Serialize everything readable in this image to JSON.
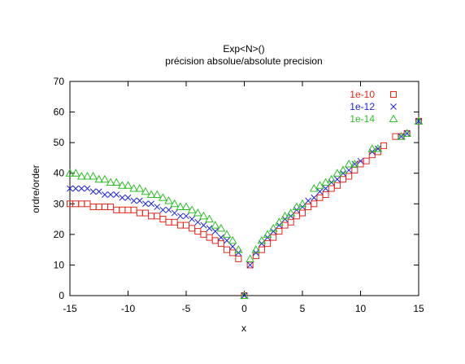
{
  "chart_data": {
    "type": "scatter",
    "title": "Exp<N>()",
    "subtitle": "précision absolue/absolute precision",
    "xlabel": "x",
    "ylabel": "ordre/order",
    "xlim": [
      -15,
      15
    ],
    "ylim": [
      0,
      70
    ],
    "x_ticks": [
      -15,
      -10,
      -5,
      0,
      5,
      10,
      15
    ],
    "y_ticks": [
      0,
      10,
      20,
      30,
      40,
      50,
      60,
      70
    ],
    "grid": false,
    "legend_position": "top-right",
    "series": [
      {
        "name": "1e-10",
        "color": "#e8251b",
        "marker": "square",
        "points": [
          [
            -15,
            30
          ],
          [
            -14.5,
            30
          ],
          [
            -14,
            30
          ],
          [
            -13.5,
            30
          ],
          [
            -13,
            29
          ],
          [
            -12.5,
            29
          ],
          [
            -12,
            29
          ],
          [
            -11.5,
            29
          ],
          [
            -11,
            28
          ],
          [
            -10.5,
            28
          ],
          [
            -10,
            28
          ],
          [
            -9.5,
            28
          ],
          [
            -9,
            27
          ],
          [
            -8.5,
            27
          ],
          [
            -8,
            26
          ],
          [
            -7.5,
            26
          ],
          [
            -7,
            25
          ],
          [
            -6.5,
            24
          ],
          [
            -6,
            24
          ],
          [
            -5.5,
            23
          ],
          [
            -5,
            23
          ],
          [
            -4.5,
            22
          ],
          [
            -4,
            21
          ],
          [
            -3.5,
            20
          ],
          [
            -3,
            19
          ],
          [
            -2.5,
            18
          ],
          [
            -2,
            17
          ],
          [
            -1.5,
            15
          ],
          [
            -1,
            14
          ],
          [
            -0.5,
            12
          ],
          [
            0,
            0
          ],
          [
            0.5,
            10
          ],
          [
            1,
            13
          ],
          [
            1.5,
            15
          ],
          [
            2,
            17
          ],
          [
            2.5,
            19
          ],
          [
            3,
            21
          ],
          [
            3.5,
            23
          ],
          [
            4,
            24
          ],
          [
            4.5,
            26
          ],
          [
            5,
            27
          ],
          [
            5.5,
            29
          ],
          [
            6,
            30
          ],
          [
            6.5,
            32
          ],
          [
            7,
            33
          ],
          [
            7.5,
            35
          ],
          [
            8,
            36
          ],
          [
            8.5,
            38
          ],
          [
            9,
            39
          ],
          [
            9.5,
            41
          ],
          [
            10,
            43
          ],
          [
            10.5,
            44
          ],
          [
            11,
            46
          ],
          [
            11.5,
            47
          ],
          [
            12,
            49
          ],
          [
            13,
            52
          ],
          [
            13.5,
            52
          ],
          [
            14,
            53
          ],
          [
            15,
            57
          ]
        ]
      },
      {
        "name": "1e-12",
        "color": "#1a23d6",
        "marker": "cross",
        "points": [
          [
            -15,
            35
          ],
          [
            -14.5,
            35
          ],
          [
            -14,
            35
          ],
          [
            -13.5,
            35
          ],
          [
            -13,
            34
          ],
          [
            -12.5,
            34
          ],
          [
            -12,
            33
          ],
          [
            -11.5,
            33
          ],
          [
            -11,
            33
          ],
          [
            -10.5,
            32
          ],
          [
            -10,
            32
          ],
          [
            -9.5,
            31
          ],
          [
            -9,
            31
          ],
          [
            -8.5,
            30
          ],
          [
            -8,
            30
          ],
          [
            -7.5,
            29
          ],
          [
            -7,
            28
          ],
          [
            -6.5,
            28
          ],
          [
            -6,
            27
          ],
          [
            -5.5,
            26
          ],
          [
            -5,
            26
          ],
          [
            -4.5,
            25
          ],
          [
            -4,
            24
          ],
          [
            -3.5,
            23
          ],
          [
            -3,
            22
          ],
          [
            -2.5,
            21
          ],
          [
            -2,
            19
          ],
          [
            -1.5,
            18
          ],
          [
            -1,
            16
          ],
          [
            -0.5,
            14
          ],
          [
            0,
            0
          ],
          [
            0.5,
            10
          ],
          [
            1,
            14
          ],
          [
            1.5,
            17
          ],
          [
            2,
            19
          ],
          [
            2.5,
            21
          ],
          [
            3,
            23
          ],
          [
            3.5,
            25
          ],
          [
            4,
            26
          ],
          [
            4.5,
            28
          ],
          [
            5,
            29
          ],
          [
            5.5,
            31
          ],
          [
            6,
            32
          ],
          [
            6.5,
            34
          ],
          [
            7,
            35
          ],
          [
            7.5,
            37
          ],
          [
            8,
            38
          ],
          [
            8.5,
            40
          ],
          [
            9,
            41
          ],
          [
            9.5,
            43
          ],
          [
            10,
            44
          ],
          [
            11,
            47
          ],
          [
            11.5,
            48
          ],
          [
            13.5,
            52
          ],
          [
            14,
            53
          ],
          [
            15,
            57
          ]
        ]
      },
      {
        "name": "1e-14",
        "color": "#2fbf29",
        "marker": "triangle",
        "points": [
          [
            -15,
            40
          ],
          [
            -14.5,
            40
          ],
          [
            -14,
            39
          ],
          [
            -13.5,
            39
          ],
          [
            -13,
            39
          ],
          [
            -12.5,
            38
          ],
          [
            -12,
            38
          ],
          [
            -11.5,
            37
          ],
          [
            -11,
            37
          ],
          [
            -10.5,
            36
          ],
          [
            -10,
            36
          ],
          [
            -9.5,
            35
          ],
          [
            -9,
            35
          ],
          [
            -8.5,
            34
          ],
          [
            -8,
            33
          ],
          [
            -7.5,
            33
          ],
          [
            -7,
            32
          ],
          [
            -6.5,
            31
          ],
          [
            -6,
            30
          ],
          [
            -5.5,
            29
          ],
          [
            -5,
            29
          ],
          [
            -4.5,
            28
          ],
          [
            -4,
            27
          ],
          [
            -3.5,
            26
          ],
          [
            -3,
            25
          ],
          [
            -2.5,
            23
          ],
          [
            -2,
            22
          ],
          [
            -1.5,
            20
          ],
          [
            -1,
            18
          ],
          [
            -0.5,
            15
          ],
          [
            0,
            0
          ],
          [
            0.5,
            12
          ],
          [
            1,
            15
          ],
          [
            1.5,
            18
          ],
          [
            2,
            20
          ],
          [
            2.5,
            22
          ],
          [
            3,
            24
          ],
          [
            3.5,
            26
          ],
          [
            4,
            27
          ],
          [
            4.5,
            29
          ],
          [
            5,
            30
          ],
          [
            6,
            35
          ],
          [
            6.5,
            36
          ],
          [
            7,
            37
          ],
          [
            7.5,
            38
          ],
          [
            8,
            40
          ],
          [
            8.5,
            41
          ],
          [
            9,
            43
          ],
          [
            9.5,
            43
          ],
          [
            11,
            48
          ],
          [
            11.5,
            48
          ],
          [
            13.5,
            52
          ],
          [
            14,
            53
          ],
          [
            15,
            57
          ]
        ]
      }
    ]
  }
}
